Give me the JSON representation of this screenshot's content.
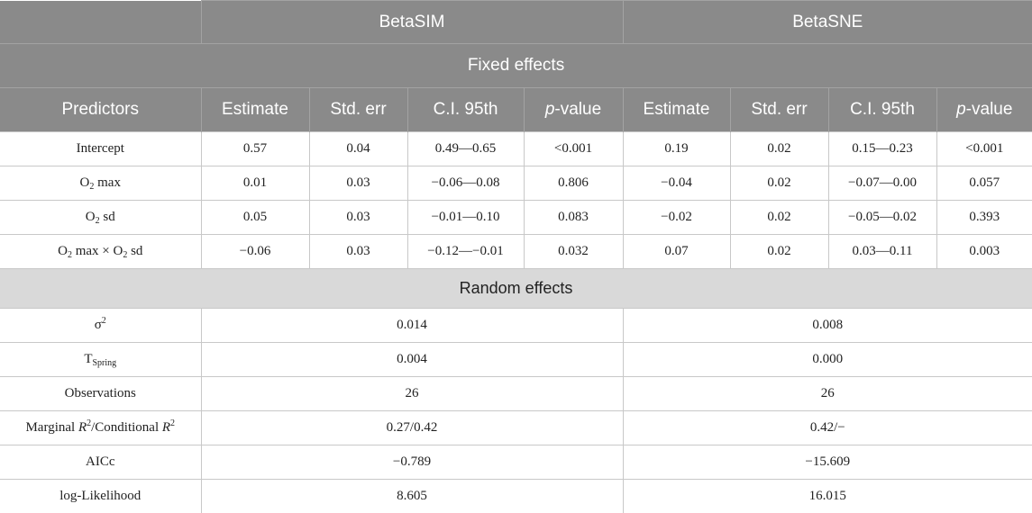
{
  "header": {
    "group_left": "BetaSIM",
    "group_right": "BetaSNE",
    "fixed_effects": "Fixed effects",
    "random_effects": "Random effects"
  },
  "columns": {
    "predictors": "Predictors",
    "estimate": "Estimate",
    "std_err": "Std. err",
    "ci": "C.I. 95th",
    "p_italic": "p",
    "p_rest": "-value"
  },
  "predictor_labels": {
    "intercept": "Intercept",
    "o2": "O",
    "sub2": "2",
    "max": " max",
    "sd": " sd",
    "times": " max × O",
    "sigma": "σ",
    "sup2": "2",
    "t": "T",
    "spring": "Spring",
    "observations": "Observations",
    "marginal_a": "Marginal ",
    "r": "R",
    "marginal_b": "/Conditional ",
    "aicc": "AICc",
    "loglik": "log-Likelihood"
  },
  "fixed_rows": [
    [
      "0.57",
      "0.04",
      "0.49—0.65",
      "<0.001",
      "0.19",
      "0.02",
      "0.15—0.23",
      "<0.001"
    ],
    [
      "0.01",
      "0.03",
      "−0.06—0.08",
      "0.806",
      "−0.04",
      "0.02",
      "−0.07—0.00",
      "0.057"
    ],
    [
      "0.05",
      "0.03",
      "−0.01—0.10",
      "0.083",
      "−0.02",
      "0.02",
      "−0.05—0.02",
      "0.393"
    ],
    [
      "−0.06",
      "0.03",
      "−0.12—−0.01",
      "0.032",
      "0.07",
      "0.02",
      "0.03—0.11",
      "0.003"
    ]
  ],
  "random_rows": [
    [
      "0.014",
      "0.008"
    ],
    [
      "0.004",
      "0.000"
    ],
    [
      "26",
      "26"
    ],
    [
      "0.27/0.42",
      "0.42/−"
    ],
    [
      "−0.789",
      "−15.609"
    ],
    [
      "8.605",
      "16.015"
    ]
  ]
}
